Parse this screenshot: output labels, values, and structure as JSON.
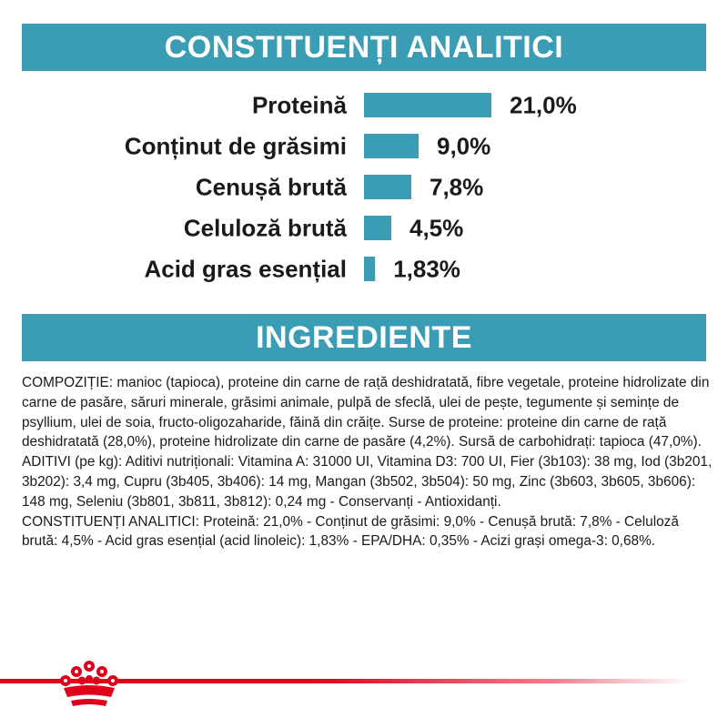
{
  "header": {
    "title": "CONSTITUENȚI ANALITICI"
  },
  "section2": {
    "title": "INGREDIENTE"
  },
  "colors": {
    "accent": "#3a9db3",
    "brand": "#e1001a"
  },
  "chart_data": {
    "type": "bar",
    "orientation": "horizontal",
    "categories": [
      "Proteină",
      "Conținut de grăsimi",
      "Cenușă brută",
      "Celuloză brută",
      "Acid gras esențial"
    ],
    "values": [
      21.0,
      9.0,
      7.8,
      4.5,
      1.83
    ],
    "value_labels": [
      "21,0%",
      "9,0%",
      "7,8%",
      "4,5%",
      "1,83%"
    ],
    "title": "CONSTITUENȚI ANALITICI",
    "xlim": [
      0,
      21.0
    ],
    "grid": false
  },
  "ingredients": {
    "composition": "COMPOZIȚIE: manioc (tapioca), proteine din carne de rață deshidratată, fibre vegetale, proteine hidrolizate din carne de pasăre, săruri minerale, grăsimi animale, pulpă de sfeclă, ulei de pește, tegumente și semințe de psyllium, ulei de soia, fructo-oligozaharide, făină din crăițe. Surse de proteine: proteine din carne de rață deshidratată (28,0%), proteine hidrolizate din carne de pasăre (4,2%). Sursă de carbohidrați: tapioca (47,0%).",
    "additives": "ADITIVI (pe kg): Aditivi nutriționali: Vitamina A: 31000 UI, Vitamina D3: 700 UI, Fier (3b103): 38 mg, Iod (3b201, 3b202): 3,4 mg, Cupru (3b405, 3b406): 14 mg, Mangan (3b502, 3b504): 50 mg, Zinc (3b603, 3b605, 3b606): 148 mg, Seleniu (3b801, 3b811, 3b812): 0,24 mg - Conservanți - Antioxidanți.",
    "analytical": "CONSTITUENȚI ANALITICI: Proteină: 21,0% - Conținut de grăsimi: 9,0% - Cenușă brută: 7,8% - Celuloză brută: 4,5% - Acid gras esențial (acid linoleic): 1,83% - EPA/DHA: 0,35% - Acizi grași omega-3: 0,68%."
  },
  "logo": {
    "icon": "crown-icon"
  }
}
